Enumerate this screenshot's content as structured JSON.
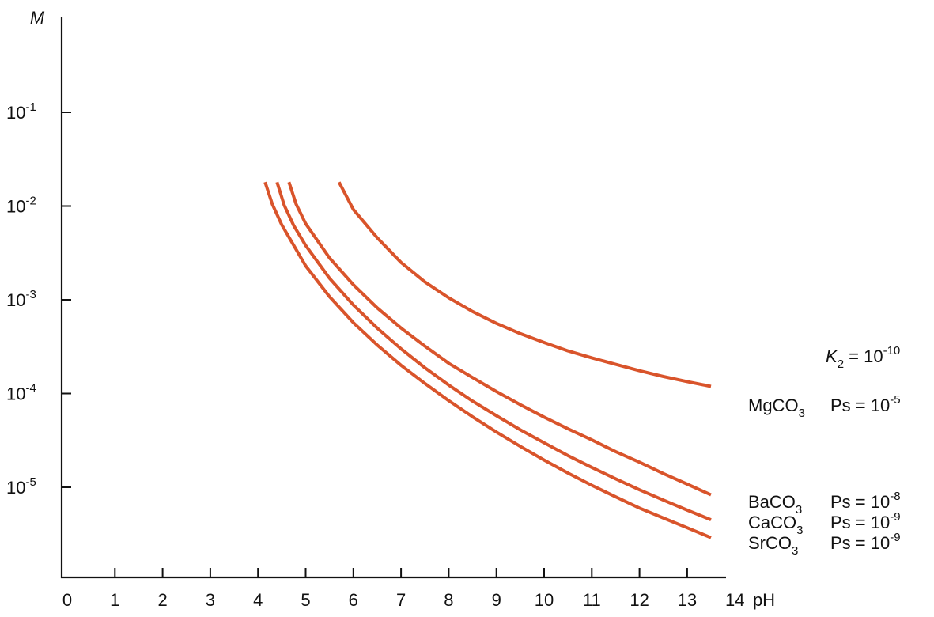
{
  "chart_data": {
    "type": "line",
    "y_axis_label": "M",
    "x_axis_label": "pH",
    "y_scale": "log",
    "xlim": [
      0,
      14
    ],
    "ylim": [
      1e-06,
      1
    ],
    "grid": false,
    "x_ticks": [
      "0",
      "1",
      "2",
      "3",
      "4",
      "5",
      "6",
      "7",
      "8",
      "9",
      "10",
      "11",
      "12",
      "13",
      "14"
    ],
    "y_ticks": [
      {
        "base": "10",
        "exp": "-1",
        "value": 0.1
      },
      {
        "base": "10",
        "exp": "-2",
        "value": 0.01
      },
      {
        "base": "10",
        "exp": "-3",
        "value": 0.001
      },
      {
        "base": "10",
        "exp": "-4",
        "value": 0.0001
      },
      {
        "base": "10",
        "exp": "-5",
        "value": 1e-05
      }
    ],
    "k2_label": {
      "symbol": "K",
      "sub": "2",
      "eq": " = ",
      "base": "10",
      "exp": "-10"
    },
    "line_color": "#d9542b",
    "series": [
      {
        "name": "MgCO3",
        "formula": {
          "pre": "MgCO",
          "sub": "3"
        },
        "ps": {
          "text": "Ps = ",
          "base": "10",
          "exp": "-5"
        },
        "x": [
          5.7,
          6.0,
          6.5,
          7.0,
          7.5,
          8.0,
          8.5,
          9.0,
          9.5,
          10.0,
          10.5,
          11.0,
          11.5,
          12.0,
          12.5,
          13.0,
          13.5
        ],
        "y": [
          0.018,
          0.0092,
          0.0046,
          0.0025,
          0.00155,
          0.00105,
          0.00075,
          0.00056,
          0.000435,
          0.00035,
          0.000285,
          0.00024,
          0.000205,
          0.000175,
          0.000152,
          0.000134,
          0.000119
        ]
      },
      {
        "name": "BaCO3",
        "formula": {
          "pre": "BaCO",
          "sub": "3"
        },
        "ps": {
          "text": "Ps = ",
          "base": "10",
          "exp": "-8"
        },
        "x": [
          4.65,
          4.8,
          5.0,
          5.5,
          6.0,
          6.5,
          7.0,
          7.5,
          8.0,
          8.5,
          9.0,
          9.5,
          10.0,
          10.5,
          11.0,
          11.5,
          12.0,
          12.5,
          13.0,
          13.5
        ],
        "y": [
          0.018,
          0.0105,
          0.0065,
          0.0028,
          0.00145,
          0.00082,
          0.0005,
          0.00032,
          0.00021,
          0.000148,
          0.000105,
          7.6e-05,
          5.6e-05,
          4.2e-05,
          3.2e-05,
          2.4e-05,
          1.85e-05,
          1.4e-05,
          1.08e-05,
          8.3e-06
        ]
      },
      {
        "name": "CaCO3",
        "formula": {
          "pre": "CaCO",
          "sub": "3"
        },
        "ps": {
          "text": "Ps = ",
          "base": "10",
          "exp": "-9"
        },
        "x": [
          4.4,
          4.55,
          4.75,
          5.0,
          5.5,
          6.0,
          6.5,
          7.0,
          7.5,
          8.0,
          8.5,
          9.0,
          9.5,
          10.0,
          10.5,
          11.0,
          11.5,
          12.0,
          12.5,
          13.0,
          13.5
        ],
        "y": [
          0.018,
          0.0102,
          0.0062,
          0.0038,
          0.0017,
          0.00088,
          0.0005,
          0.0003,
          0.000188,
          0.000123,
          8.3e-05,
          5.8e-05,
          4.1e-05,
          2.98e-05,
          2.18e-05,
          1.63e-05,
          1.23e-05,
          9.4e-06,
          7.3e-06,
          5.7e-06,
          4.5e-06
        ]
      },
      {
        "name": "SrCO3",
        "formula": {
          "pre": "SrCO",
          "sub": "3"
        },
        "ps": {
          "text": "Ps = ",
          "base": "10",
          "exp": "-9"
        },
        "x": [
          4.15,
          4.3,
          4.5,
          5.0,
          5.5,
          6.0,
          6.5,
          7.0,
          7.5,
          8.0,
          8.5,
          9.0,
          9.5,
          10.0,
          10.5,
          11.0,
          11.5,
          12.0,
          12.5,
          13.0,
          13.5
        ],
        "y": [
          0.018,
          0.0105,
          0.0063,
          0.0023,
          0.00108,
          0.00057,
          0.00033,
          0.0002,
          0.000128,
          8.4e-05,
          5.65e-05,
          3.88e-05,
          2.73e-05,
          1.95e-05,
          1.42e-05,
          1.05e-05,
          7.9e-06,
          6e-06,
          4.7e-06,
          3.7e-06,
          2.9e-06
        ]
      }
    ]
  }
}
